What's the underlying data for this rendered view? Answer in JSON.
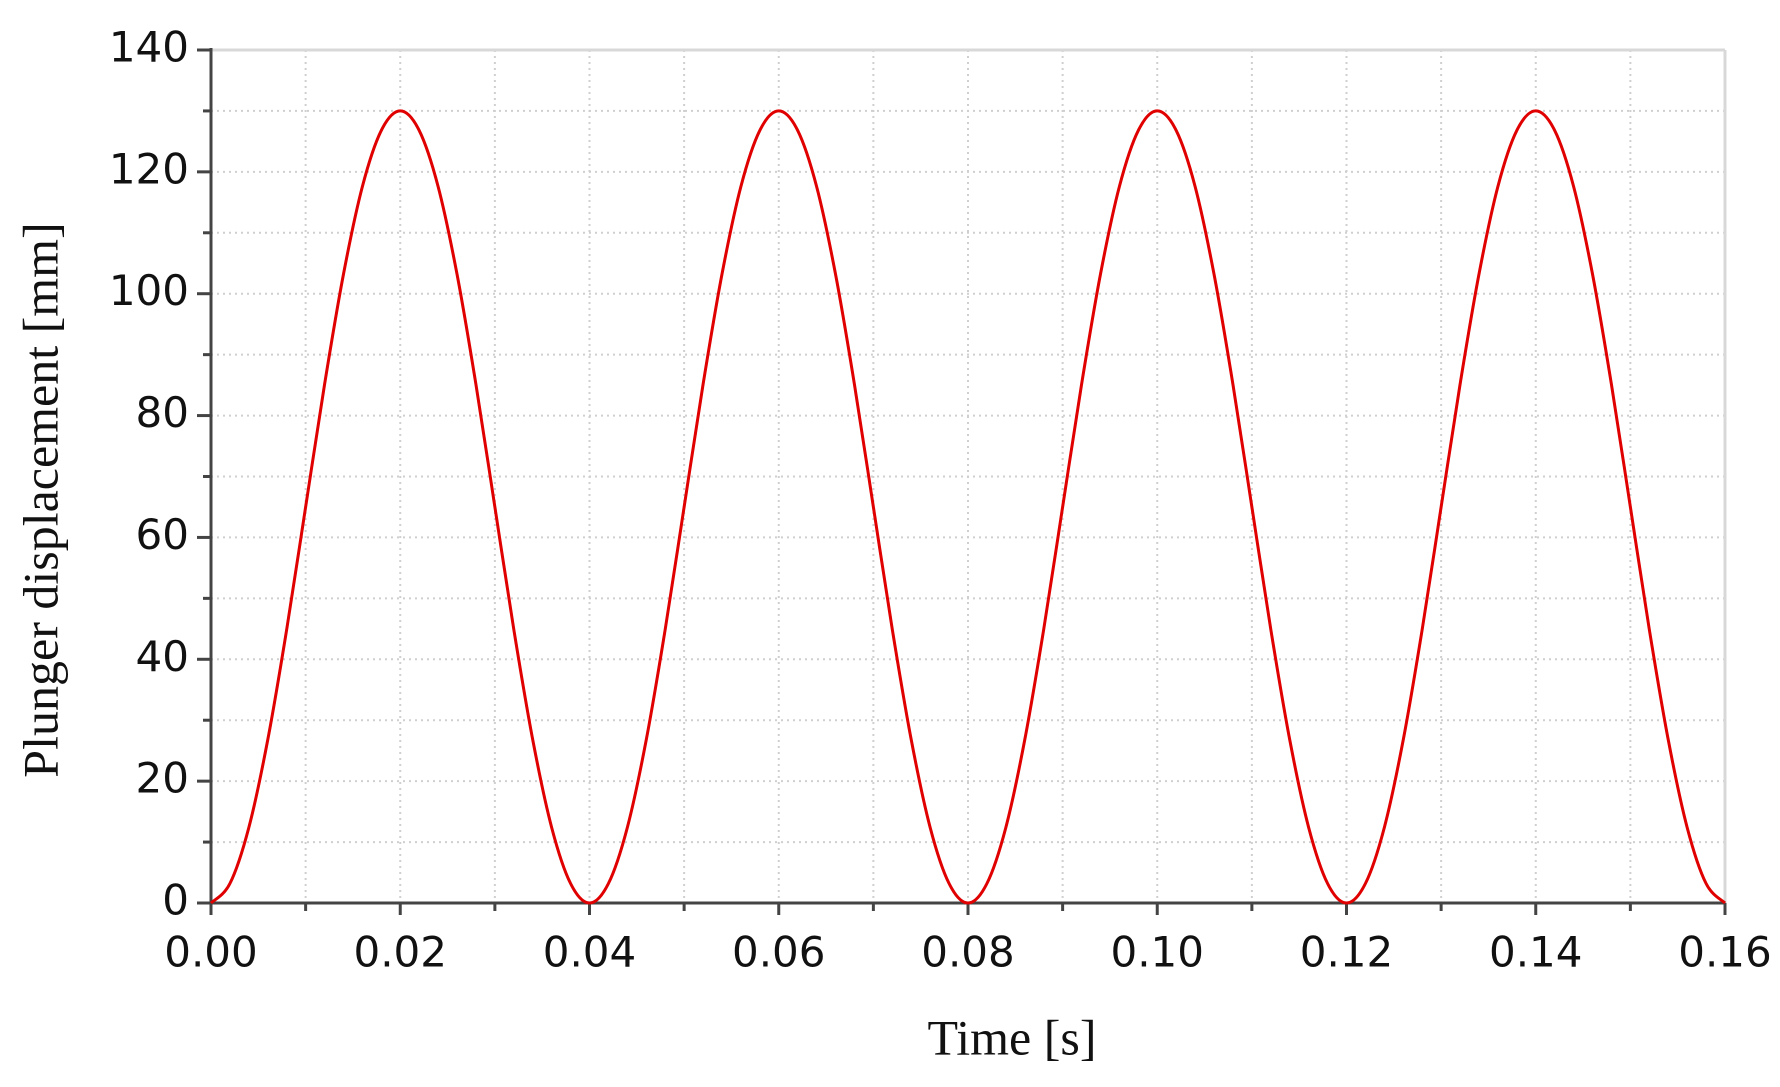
{
  "chart_data": {
    "type": "line",
    "x_label": "Time [s]",
    "y_label": "Plunger displacement [mm]",
    "x": [
      0,
      0.002,
      0.004,
      0.006,
      0.008,
      0.01,
      0.012,
      0.014,
      0.016,
      0.018,
      0.02,
      0.022,
      0.024,
      0.026,
      0.028,
      0.03,
      0.032,
      0.034,
      0.036,
      0.038,
      0.04,
      0.042,
      0.044,
      0.046,
      0.048,
      0.05,
      0.052,
      0.054,
      0.056,
      0.058,
      0.06,
      0.062,
      0.064,
      0.066,
      0.068,
      0.07,
      0.072,
      0.074,
      0.076,
      0.078,
      0.08,
      0.082,
      0.084,
      0.086,
      0.088,
      0.09,
      0.092,
      0.094,
      0.096,
      0.098,
      0.1,
      0.102,
      0.104,
      0.106,
      0.108,
      0.11,
      0.112,
      0.114,
      0.116,
      0.118,
      0.12,
      0.122,
      0.124,
      0.126,
      0.128,
      0.13,
      0.132,
      0.134,
      0.136,
      0.138,
      0.14,
      0.142,
      0.144,
      0.146,
      0.148,
      0.15,
      0.152,
      0.154,
      0.156,
      0.158,
      0.16
    ],
    "series": [
      {
        "color": "#e00000",
        "values": [
          0,
          3.2,
          12.4,
          26.8,
          44.9,
          65,
          85.1,
          103.2,
          117.6,
          126.8,
          130,
          126.8,
          117.6,
          103.2,
          85.1,
          65,
          44.9,
          26.8,
          12.4,
          3.2,
          0,
          3.2,
          12.4,
          26.8,
          44.9,
          65,
          85.1,
          103.2,
          117.6,
          126.8,
          130,
          126.8,
          117.6,
          103.2,
          85.1,
          65,
          44.9,
          26.8,
          12.4,
          3.2,
          0,
          3.2,
          12.4,
          26.8,
          44.9,
          65,
          85.1,
          103.2,
          117.6,
          126.8,
          130,
          126.8,
          117.6,
          103.2,
          85.1,
          65,
          44.9,
          26.8,
          12.4,
          3.2,
          0,
          3.2,
          12.4,
          26.8,
          44.9,
          65,
          85.1,
          103.2,
          117.6,
          126.8,
          130,
          126.8,
          117.6,
          103.2,
          85.1,
          65,
          44.9,
          26.8,
          12.4,
          3.2,
          0
        ]
      }
    ],
    "xlim": [
      0,
      0.16
    ],
    "ylim": [
      0,
      140
    ],
    "xticks": [
      {
        "value": 0,
        "label": "0.00"
      },
      {
        "value": 0.02,
        "label": "0.02"
      },
      {
        "value": 0.04,
        "label": "0.04"
      },
      {
        "value": 0.06,
        "label": "0.06"
      },
      {
        "value": 0.08,
        "label": "0.08"
      },
      {
        "value": 0.1,
        "label": "0.10"
      },
      {
        "value": 0.12,
        "label": "0.12"
      },
      {
        "value": 0.14,
        "label": "0.14"
      },
      {
        "value": 0.16,
        "label": "0.16"
      }
    ],
    "yticks": [
      0,
      20,
      40,
      60,
      80,
      100,
      120,
      140
    ],
    "xminorticks": [
      0.01,
      0.03,
      0.05,
      0.07,
      0.09,
      0.11,
      0.13,
      0.15
    ],
    "yminorticks": [
      10,
      30,
      50,
      70,
      90,
      110,
      130
    ],
    "grid": true
  }
}
